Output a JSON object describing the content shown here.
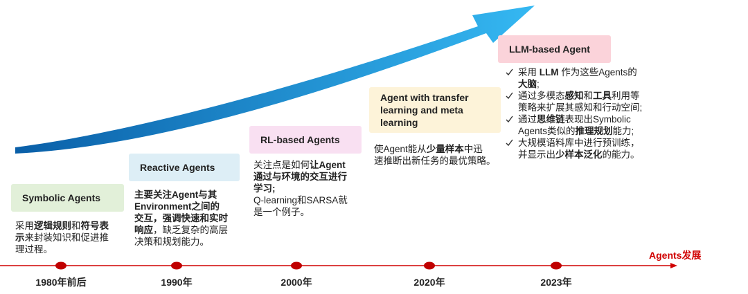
{
  "timeline": {
    "label": "Agents发展",
    "points": [
      {
        "label": "1980年前后"
      },
      {
        "label": "1990年"
      },
      {
        "label": "2000年"
      },
      {
        "label": "2020年"
      },
      {
        "label": "2023年"
      }
    ]
  },
  "cards": [
    {
      "title": [
        "Symbolic Agents"
      ],
      "description": [
        [
          {
            "text": "采用"
          },
          {
            "text": "逻辑规则",
            "bold": true
          },
          {
            "text": "和"
          },
          {
            "text": "符号表",
            "bold": true
          }
        ],
        [
          {
            "text": "示",
            "bold": true
          },
          {
            "text": "来封装知识和促进推"
          }
        ],
        [
          {
            "text": "理过程。"
          }
        ]
      ]
    },
    {
      "title": [
        "Reactive Agents"
      ],
      "description": [
        [
          {
            "text": "主要关注Agent与其",
            "bold": true
          }
        ],
        [
          {
            "text": "Environment之间的",
            "bold": true
          }
        ],
        [
          {
            "text": "交互，强调快速和实时",
            "bold": true
          }
        ],
        [
          {
            "text": "响应",
            "bold": true
          },
          {
            "text": "，缺乏复杂的高层"
          }
        ],
        [
          {
            "text": "决策和规划能力。"
          }
        ]
      ]
    },
    {
      "title": [
        "RL-based Agents"
      ],
      "description": [
        [
          {
            "text": "关注点是如何"
          },
          {
            "text": "让Agent",
            "bold": true
          }
        ],
        [
          {
            "text": "通过与环境的交互进行",
            "bold": true
          }
        ],
        [
          {
            "text": "学习;",
            "bold": true
          }
        ],
        [
          {
            "text": "Q-learning和SARSA就"
          }
        ],
        [
          {
            "text": "是一个例子。"
          }
        ]
      ]
    },
    {
      "title": [
        "Agent with transfer",
        "learning and meta",
        "learning"
      ],
      "description": [
        [
          {
            "text": "使Agent能从"
          },
          {
            "text": "少量样本",
            "bold": true
          },
          {
            "text": "中迅"
          }
        ],
        [
          {
            "text": "速推断出新任务的最优策略。"
          }
        ]
      ]
    },
    {
      "title": [
        "LLM-based Agent"
      ],
      "items": [
        [
          [
            {
              "text": "采用 "
            },
            {
              "text": "LLM",
              "bold": true
            },
            {
              "text": " 作为这些Agents的"
            }
          ],
          [
            {
              "text": "大脑",
              "bold": true
            },
            {
              "text": ";"
            }
          ]
        ],
        [
          [
            {
              "text": "通过多模态"
            },
            {
              "text": "感知",
              "bold": true
            },
            {
              "text": "和"
            },
            {
              "text": "工具",
              "bold": true
            },
            {
              "text": "利用等"
            }
          ],
          [
            {
              "text": "策略来扩展其感知和行动空间;"
            }
          ]
        ],
        [
          [
            {
              "text": "通过"
            },
            {
              "text": "思维链",
              "bold": true
            },
            {
              "text": "表现出Symbolic"
            }
          ],
          [
            {
              "text": "Agents类似的"
            },
            {
              "text": "推理规划",
              "bold": true
            },
            {
              "text": "能力;"
            }
          ]
        ],
        [
          [
            {
              "text": "大规模语料库中进行预训练，"
            }
          ],
          [
            {
              "text": "并显示出"
            },
            {
              "text": "少样本泛化",
              "bold": true
            },
            {
              "text": "的能力。"
            }
          ]
        ]
      ]
    }
  ]
}
